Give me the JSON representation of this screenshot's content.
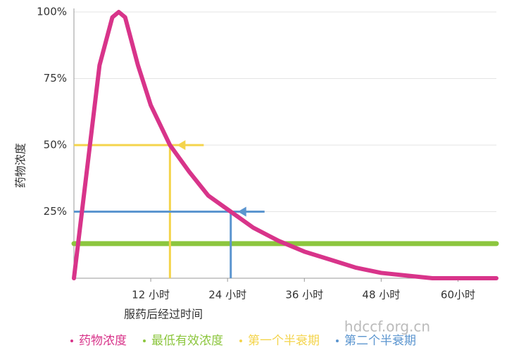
{
  "chart_data": {
    "type": "line",
    "x_label": "服药后经过时间",
    "y_label": "药物浓度",
    "xlim": [
      0,
      66
    ],
    "xticks": [
      {
        "value": 12,
        "label": "12 小时"
      },
      {
        "value": 24,
        "label": "24 小时"
      },
      {
        "value": 36,
        "label": "36 小时"
      },
      {
        "value": 48,
        "label": "48 小时"
      },
      {
        "value": 60,
        "label": "60小时"
      }
    ],
    "ylim": [
      0,
      100
    ],
    "yticks": [
      {
        "value": 25,
        "label": "25%"
      },
      {
        "value": 50,
        "label": "50%"
      },
      {
        "value": 75,
        "label": "75%"
      },
      {
        "value": 100,
        "label": "100%"
      }
    ],
    "grid": true,
    "series": [
      {
        "name": "药物浓度",
        "color": "#d8348a",
        "x": [
          0,
          2,
          4,
          6,
          7,
          8,
          10,
          12,
          15,
          18,
          21,
          24.5,
          28,
          32,
          36,
          40,
          44,
          48,
          52,
          56,
          66
        ],
        "values": [
          0,
          40,
          80,
          98,
          100,
          98,
          80,
          65,
          50,
          40,
          31,
          25,
          19,
          14,
          10,
          7,
          4,
          2,
          1,
          0,
          0
        ]
      }
    ],
    "min_effective": {
      "name": "最低有效浓度",
      "color": "#8cc63e",
      "value": 13
    },
    "half_lives": [
      {
        "name": "第一个半衰期",
        "color": "#f4d44c",
        "x": 15,
        "value": 50
      },
      {
        "name": "第二个半衰期",
        "color": "#5b95cf",
        "x": 24.5,
        "value": 25
      }
    ],
    "watermark": "hdccf.org.cn"
  }
}
